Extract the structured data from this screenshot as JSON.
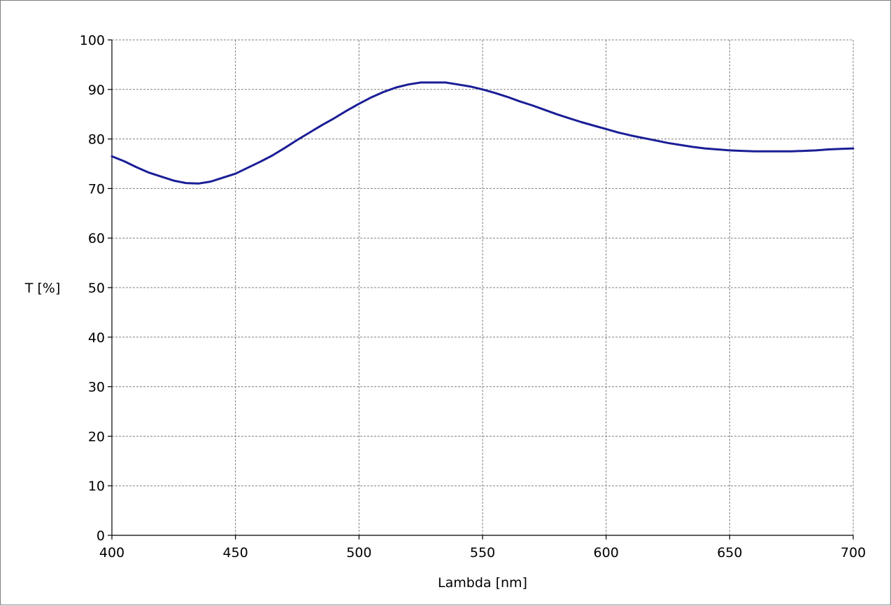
{
  "chart_data": {
    "type": "line",
    "title": "",
    "xlabel": "Lambda [nm]",
    "ylabel": "T [%]",
    "xlim": [
      400,
      700
    ],
    "ylim": [
      0,
      100
    ],
    "x_ticks": [
      400,
      450,
      500,
      550,
      600,
      650,
      700
    ],
    "y_ticks": [
      0,
      10,
      20,
      30,
      40,
      50,
      60,
      70,
      80,
      90,
      100
    ],
    "grid": true,
    "line_color": "#1a1e96",
    "series": [
      {
        "x": [
          400,
          405,
          410,
          415,
          420,
          425,
          430,
          435,
          440,
          445,
          450,
          455,
          460,
          465,
          470,
          475,
          480,
          485,
          490,
          495,
          500,
          505,
          510,
          515,
          520,
          525,
          530,
          535,
          540,
          545,
          550,
          555,
          560,
          565,
          570,
          575,
          580,
          585,
          590,
          595,
          600,
          605,
          610,
          615,
          620,
          625,
          630,
          635,
          640,
          645,
          650,
          655,
          660,
          665,
          670,
          675,
          680,
          685,
          690,
          695,
          700
        ],
        "y": [
          76.5,
          75.5,
          74.3,
          73.2,
          72.4,
          71.6,
          71.1,
          71.0,
          71.4,
          72.2,
          73.0,
          74.2,
          75.4,
          76.7,
          78.2,
          79.8,
          81.3,
          82.8,
          84.2,
          85.7,
          87.1,
          88.4,
          89.5,
          90.4,
          91.0,
          91.4,
          91.4,
          91.4,
          91.0,
          90.6,
          90.0,
          89.3,
          88.5,
          87.6,
          86.8,
          85.9,
          85.0,
          84.2,
          83.4,
          82.7,
          82.0,
          81.3,
          80.7,
          80.2,
          79.7,
          79.2,
          78.8,
          78.4,
          78.1,
          77.9,
          77.7,
          77.6,
          77.5,
          77.5,
          77.5,
          77.5,
          77.6,
          77.7,
          77.9,
          78.0,
          78.1
        ]
      }
    ]
  }
}
